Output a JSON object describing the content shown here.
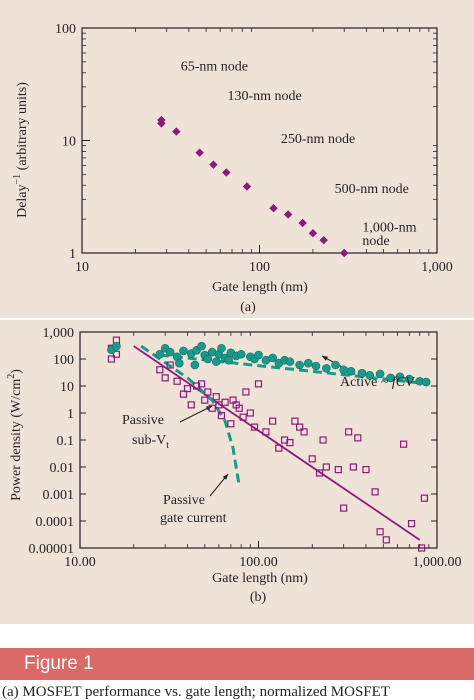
{
  "figure_label": "Figure 1",
  "caption": "(a) MOSFET performance vs. gate length; normalized MOSFET",
  "colors": {
    "panel_bg": "#efe3d8",
    "purple": "#8b1a7a",
    "teal": "#1a9a8a",
    "banner": "#d96a68"
  },
  "chart_data": [
    {
      "type": "scatter",
      "panel_label": "(a)",
      "xlabel": "Gate length  (nm)",
      "ylabel": "Delay",
      "ylabel_sup": "−1",
      "ylabel_rest": "(arbitrary units)",
      "x_scale": "log",
      "y_scale": "log",
      "xlim": [
        10,
        1000
      ],
      "ylim": [
        1,
        100
      ],
      "x_ticks": [
        "10",
        "100",
        "1,000"
      ],
      "y_ticks": [
        "1",
        "10",
        "100"
      ],
      "series": [
        {
          "marker": "diamond",
          "color": "#8b1a7a",
          "points": [
            [
              28,
              15.2
            ],
            [
              28,
              14.2
            ],
            [
              34,
              12
            ],
            [
              46,
              7.8
            ],
            [
              55,
              6.1
            ],
            [
              65,
              5.2
            ],
            [
              85,
              3.9
            ],
            [
              120,
              2.5
            ],
            [
              145,
              2.2
            ],
            [
              175,
              1.85
            ],
            [
              200,
              1.5
            ],
            [
              230,
              1.3
            ],
            [
              300,
              1.0
            ]
          ]
        }
      ],
      "annotations": [
        {
          "text": "65-nm node",
          "x": 36,
          "y": 42
        },
        {
          "text": "130-nm node",
          "x": 66,
          "y": 23
        },
        {
          "text": "250-nm node",
          "x": 132,
          "y": 9.5
        },
        {
          "text": "500-nm node",
          "x": 265,
          "y": 3.4
        },
        {
          "text": "1,000-nm",
          "x": 380,
          "y": 1.55
        },
        {
          "text": "node",
          "x": 380,
          "y": 1.18
        }
      ]
    },
    {
      "type": "scatter",
      "panel_label": "(b)",
      "xlabel": "Gate length  (nm)",
      "ylabel": "Power density  (W/cm",
      "ylabel_sup": "2",
      "ylabel_end": ")",
      "x_scale": "log",
      "y_scale": "log",
      "xlim": [
        10,
        1000
      ],
      "ylim": [
        1e-05,
        1000
      ],
      "x_ticks": [
        "10.00",
        "100.00",
        "1,000.00"
      ],
      "y_ticks": [
        "0.00001",
        "0.0001",
        "0.001",
        "0.01",
        "0.1",
        "1",
        "10",
        "100",
        "1,000"
      ],
      "series": [
        {
          "name": "Active",
          "marker": "circle",
          "color": "#1a9a8a",
          "points": [
            [
              15,
              220
            ],
            [
              16,
              300
            ],
            [
              28,
              150
            ],
            [
              30,
              250
            ],
            [
              32,
              180
            ],
            [
              35,
              120
            ],
            [
              38,
              200
            ],
            [
              42,
              160
            ],
            [
              45,
              210
            ],
            [
              50,
              140
            ],
            [
              55,
              180
            ],
            [
              60,
              150
            ],
            [
              65,
              110
            ],
            [
              70,
              170
            ],
            [
              75,
              130
            ],
            [
              80,
              150
            ],
            [
              90,
              120
            ],
            [
              95,
              100
            ],
            [
              100,
              140
            ],
            [
              110,
              90
            ],
            [
              120,
              110
            ],
            [
              130,
              70
            ],
            [
              140,
              90
            ],
            [
              150,
              80
            ],
            [
              170,
              60
            ],
            [
              190,
              70
            ],
            [
              210,
              55
            ],
            [
              240,
              45
            ],
            [
              270,
              60
            ],
            [
              300,
              40
            ],
            [
              330,
              35
            ],
            [
              380,
              30
            ],
            [
              420,
              25
            ],
            [
              480,
              28
            ],
            [
              550,
              20
            ],
            [
              620,
              22
            ],
            [
              700,
              18
            ],
            [
              800,
              15
            ],
            [
              870,
              14
            ],
            [
              52,
              100
            ],
            [
              58,
              80
            ],
            [
              68,
              90
            ],
            [
              44,
              60
            ],
            [
              36,
              70
            ],
            [
              48,
              300
            ],
            [
              62,
              250
            ]
          ]
        },
        {
          "name": "Passive",
          "marker": "square",
          "color": "#8b1a7a",
          "points": [
            [
              15,
              100
            ],
            [
              15,
              250
            ],
            [
              16,
              500
            ],
            [
              16,
              150
            ],
            [
              28,
              40
            ],
            [
              30,
              20
            ],
            [
              32,
              60
            ],
            [
              35,
              15
            ],
            [
              38,
              5
            ],
            [
              40,
              8
            ],
            [
              42,
              2
            ],
            [
              45,
              10
            ],
            [
              48,
              12
            ],
            [
              50,
              3
            ],
            [
              52,
              6
            ],
            [
              55,
              1.5
            ],
            [
              58,
              4
            ],
            [
              60,
              2
            ],
            [
              62,
              0.8
            ],
            [
              65,
              2.5
            ],
            [
              70,
              0.4
            ],
            [
              72,
              3
            ],
            [
              75,
              2
            ],
            [
              78,
              1.5
            ],
            [
              82,
              0.7
            ],
            [
              85,
              6
            ],
            [
              90,
              1
            ],
            [
              95,
              0.3
            ],
            [
              100,
              12
            ],
            [
              110,
              0.2
            ],
            [
              120,
              0.5
            ],
            [
              130,
              0.05
            ],
            [
              140,
              0.1
            ],
            [
              150,
              0.08
            ],
            [
              160,
              0.5
            ],
            [
              170,
              0.3
            ],
            [
              180,
              0.2
            ],
            [
              200,
              0.02
            ],
            [
              220,
              0.006
            ],
            [
              230,
              0.1
            ],
            [
              240,
              0.01
            ],
            [
              280,
              0.008
            ],
            [
              300,
              0.0003
            ],
            [
              320,
              0.2
            ],
            [
              340,
              0.01
            ],
            [
              360,
              0.12
            ],
            [
              400,
              0.008
            ],
            [
              450,
              0.0012
            ],
            [
              480,
              4e-05
            ],
            [
              520,
              2e-05
            ],
            [
              650,
              0.07
            ],
            [
              720,
              8e-05
            ],
            [
              820,
              1e-05
            ],
            [
              850,
              0.0007
            ]
          ]
        }
      ],
      "lines": [
        {
          "name": "Passive gate current",
          "style": "solid",
          "color": "#8b1a7a",
          "points": [
            [
              20,
              300
            ],
            [
              800,
              2e-05
            ]
          ]
        },
        {
          "name": "Active",
          "style": "dashed",
          "color": "#1a9a8a",
          "points": [
            [
              28,
              140
            ],
            [
              900,
              12
            ]
          ]
        },
        {
          "name": "Passive sub-Vt",
          "style": "dashed",
          "color": "#1a9a8a",
          "points": [
            [
              22,
              300
            ],
            [
              40,
              20
            ],
            [
              55,
              3
            ],
            [
              65,
              0.5
            ],
            [
              72,
              0.05
            ],
            [
              78,
              0.002
            ]
          ]
        }
      ],
      "annotations": [
        {
          "text": "Active ~ ",
          "text_it": "fCV"
        },
        {
          "text": "Passive"
        },
        {
          "text": "sub-V",
          "sub": "t"
        },
        {
          "text": "Passive"
        },
        {
          "text": "gate current"
        }
      ]
    }
  ]
}
